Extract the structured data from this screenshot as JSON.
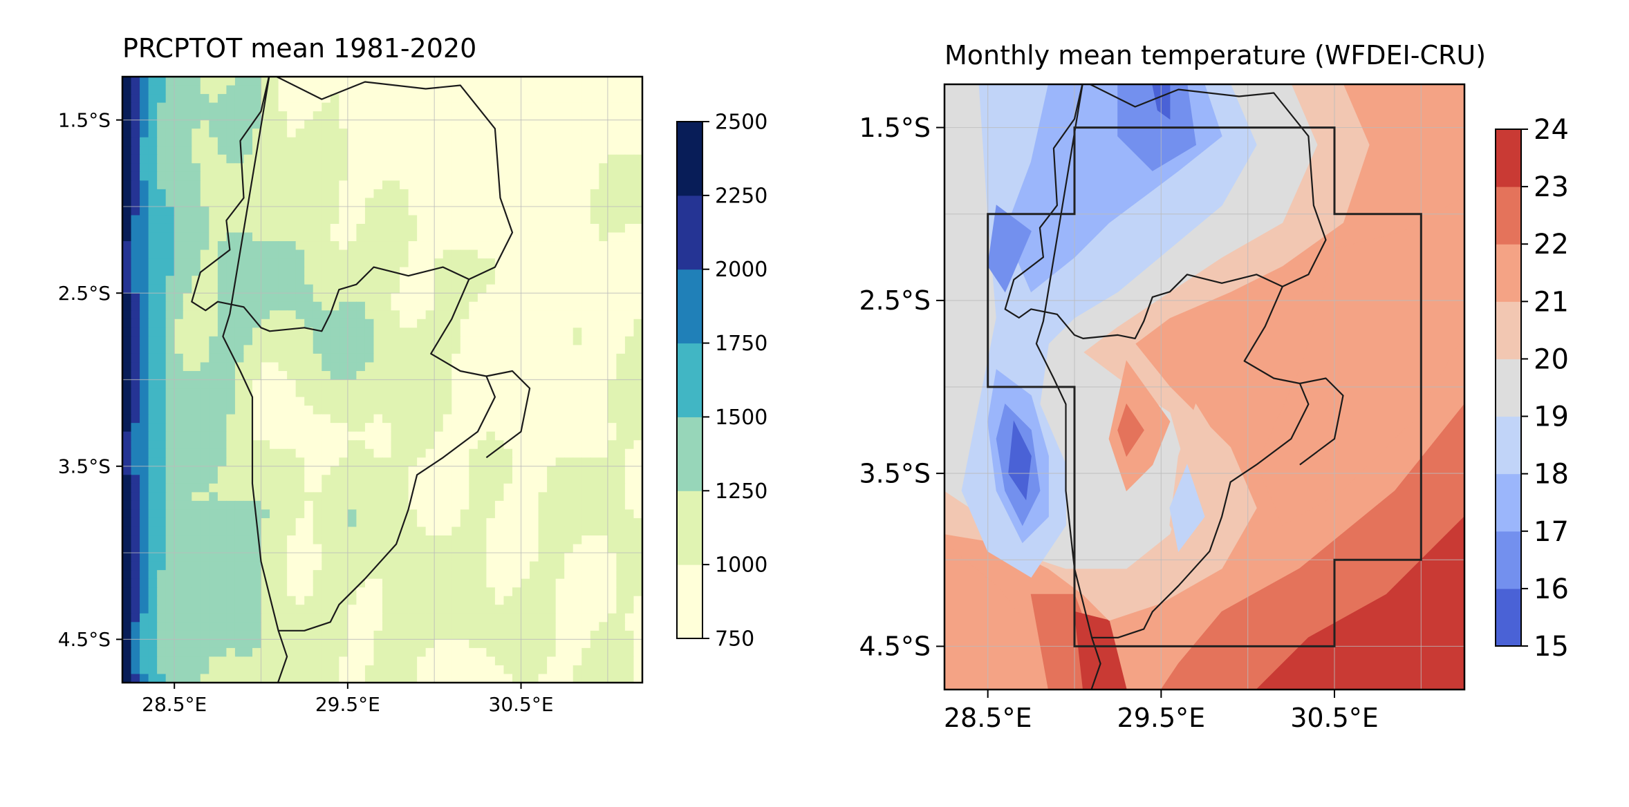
{
  "left_map": {
    "title": "PRCPTOT mean 1981-2020",
    "x_ticks": [
      "28.5°E",
      "29.5°E",
      "30.5°E"
    ],
    "y_ticks": [
      "1.5°S",
      "2.5°S",
      "3.5°S",
      "4.5°S"
    ],
    "colorbar_ticks": [
      "2500",
      "2250",
      "2000",
      "1750",
      "1500",
      "1250",
      "1000",
      "750"
    ],
    "colormap": "YlGnBu",
    "colors": [
      "#ffffd9",
      "#e0f3b2",
      "#97d6b9",
      "#41b6c4",
      "#2080b8",
      "#253494",
      "#081d58"
    ]
  },
  "right_map": {
    "title": "Monthly mean temperature (WFDEI-CRU)",
    "x_ticks": [
      "28.5°E",
      "29.5°E",
      "30.5°E"
    ],
    "y_ticks": [
      "1.5°S",
      "2.5°S",
      "3.5°S",
      "4.5°S"
    ],
    "colorbar_ticks": [
      "24",
      "23",
      "22",
      "21",
      "20",
      "19",
      "18",
      "17",
      "16",
      "15"
    ],
    "colormap": "coolwarm",
    "colors": [
      "#4a62d6",
      "#7390ee",
      "#9bb6fb",
      "#c1d4f8",
      "#dddddd",
      "#f2c7b2",
      "#f4a385",
      "#e4735b",
      "#c93a34"
    ]
  },
  "chart_data": [
    {
      "type": "heatmap",
      "title": "PRCPTOT mean 1981-2020",
      "x_range_degE": [
        28.2,
        31.2
      ],
      "y_range_degS": [
        1.25,
        4.75
      ],
      "x_ticks": [
        28.5,
        29.5,
        30.5
      ],
      "y_ticks": [
        1.5,
        2.5,
        3.5,
        4.5
      ],
      "levels": [
        750,
        1000,
        1250,
        1500,
        1750,
        2000,
        2250,
        2500
      ],
      "grid": true
    },
    {
      "type": "heatmap",
      "title": "Monthly mean temperature (WFDEI-CRU)",
      "x_range_degE": [
        28.25,
        31.25
      ],
      "y_range_degS": [
        1.25,
        4.75
      ],
      "x_ticks": [
        28.5,
        29.5,
        30.5
      ],
      "y_ticks": [
        1.5,
        2.5,
        3.5,
        4.5
      ],
      "levels": [
        15,
        16,
        17,
        18,
        19,
        20,
        21,
        22,
        23,
        24
      ],
      "grid": true
    }
  ]
}
